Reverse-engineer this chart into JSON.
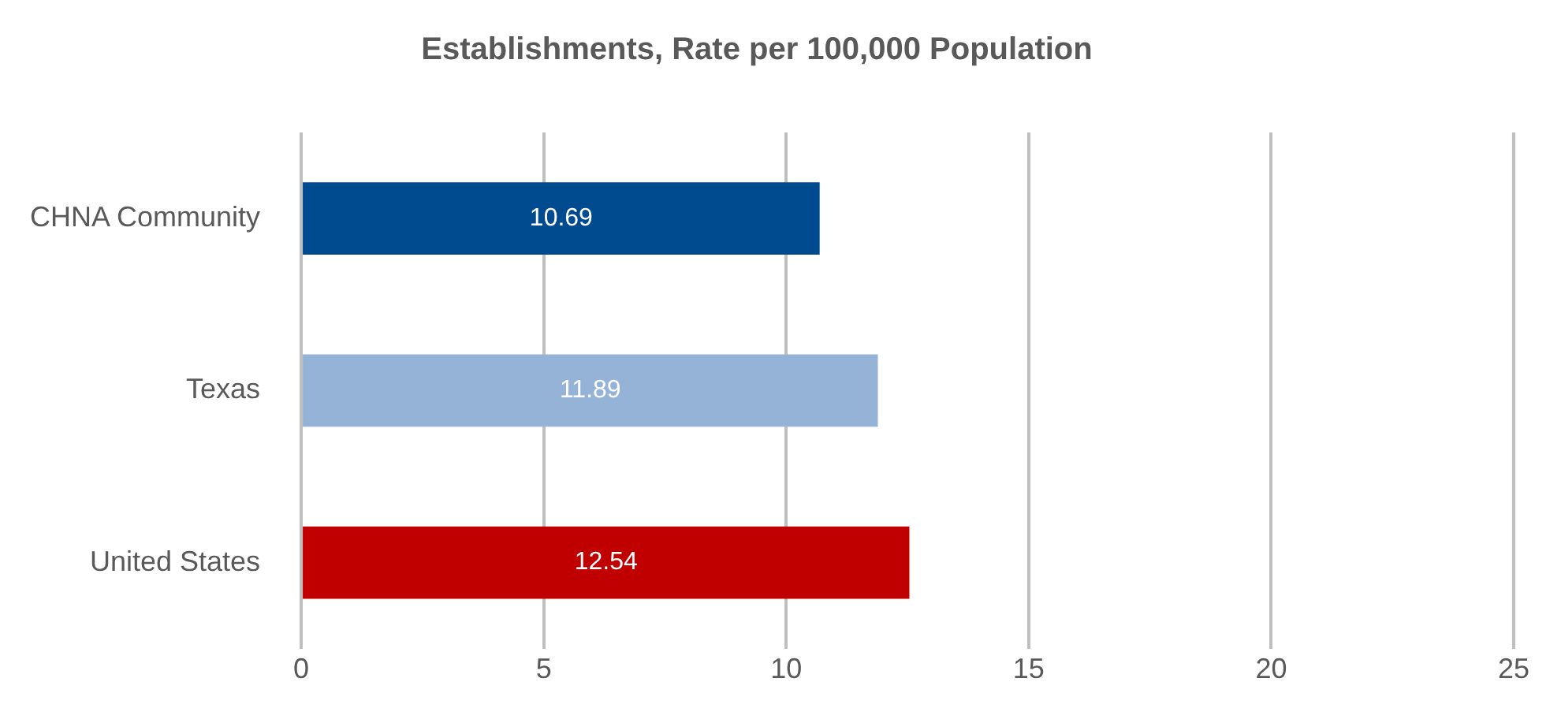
{
  "chart_data": {
    "type": "bar",
    "orientation": "horizontal",
    "title": "Establishments, Rate per 100,000 Population",
    "categories": [
      "CHNA Community",
      "Texas",
      "United States"
    ],
    "values": [
      10.69,
      11.89,
      12.54
    ],
    "colors": [
      "#004a8f",
      "#95b3d7",
      "#c00000"
    ],
    "xlim": [
      0,
      25
    ],
    "xticks": [
      0,
      5,
      10,
      15,
      20,
      25
    ],
    "grid": "x",
    "data_labels": true,
    "legend": false
  }
}
